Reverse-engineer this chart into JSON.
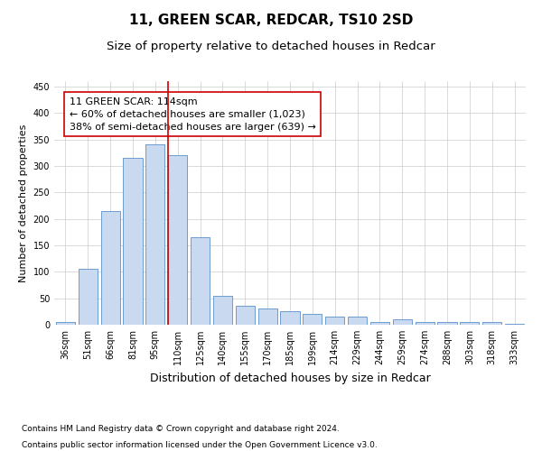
{
  "title": "11, GREEN SCAR, REDCAR, TS10 2SD",
  "subtitle": "Size of property relative to detached houses in Redcar",
  "xlabel": "Distribution of detached houses by size in Redcar",
  "ylabel": "Number of detached properties",
  "categories": [
    "36sqm",
    "51sqm",
    "66sqm",
    "81sqm",
    "95sqm",
    "110sqm",
    "125sqm",
    "140sqm",
    "155sqm",
    "170sqm",
    "185sqm",
    "199sqm",
    "214sqm",
    "229sqm",
    "244sqm",
    "259sqm",
    "274sqm",
    "288sqm",
    "303sqm",
    "318sqm",
    "333sqm"
  ],
  "values": [
    5,
    105,
    215,
    315,
    340,
    320,
    165,
    55,
    35,
    30,
    25,
    20,
    15,
    15,
    5,
    10,
    5,
    5,
    5,
    5,
    2
  ],
  "bar_color": "#c8d9f0",
  "bar_edge_color": "#5b8fc9",
  "ylim": [
    0,
    460
  ],
  "yticks": [
    0,
    50,
    100,
    150,
    200,
    250,
    300,
    350,
    400,
    450
  ],
  "red_line_index": 5,
  "annotation_line1": "11 GREEN SCAR: 114sqm",
  "annotation_line2": "← 60% of detached houses are smaller (1,023)",
  "annotation_line3": "38% of semi-detached houses are larger (639) →",
  "annotation_box_color": "#ffffff",
  "annotation_box_edge_color": "#cc0000",
  "footer_line1": "Contains HM Land Registry data © Crown copyright and database right 2024.",
  "footer_line2": "Contains public sector information licensed under the Open Government Licence v3.0.",
  "background_color": "#ffffff",
  "grid_color": "#cccccc",
  "title_fontsize": 11,
  "subtitle_fontsize": 9.5,
  "xlabel_fontsize": 9,
  "ylabel_fontsize": 8,
  "tick_fontsize": 7,
  "annotation_fontsize": 8,
  "footer_fontsize": 6.5
}
